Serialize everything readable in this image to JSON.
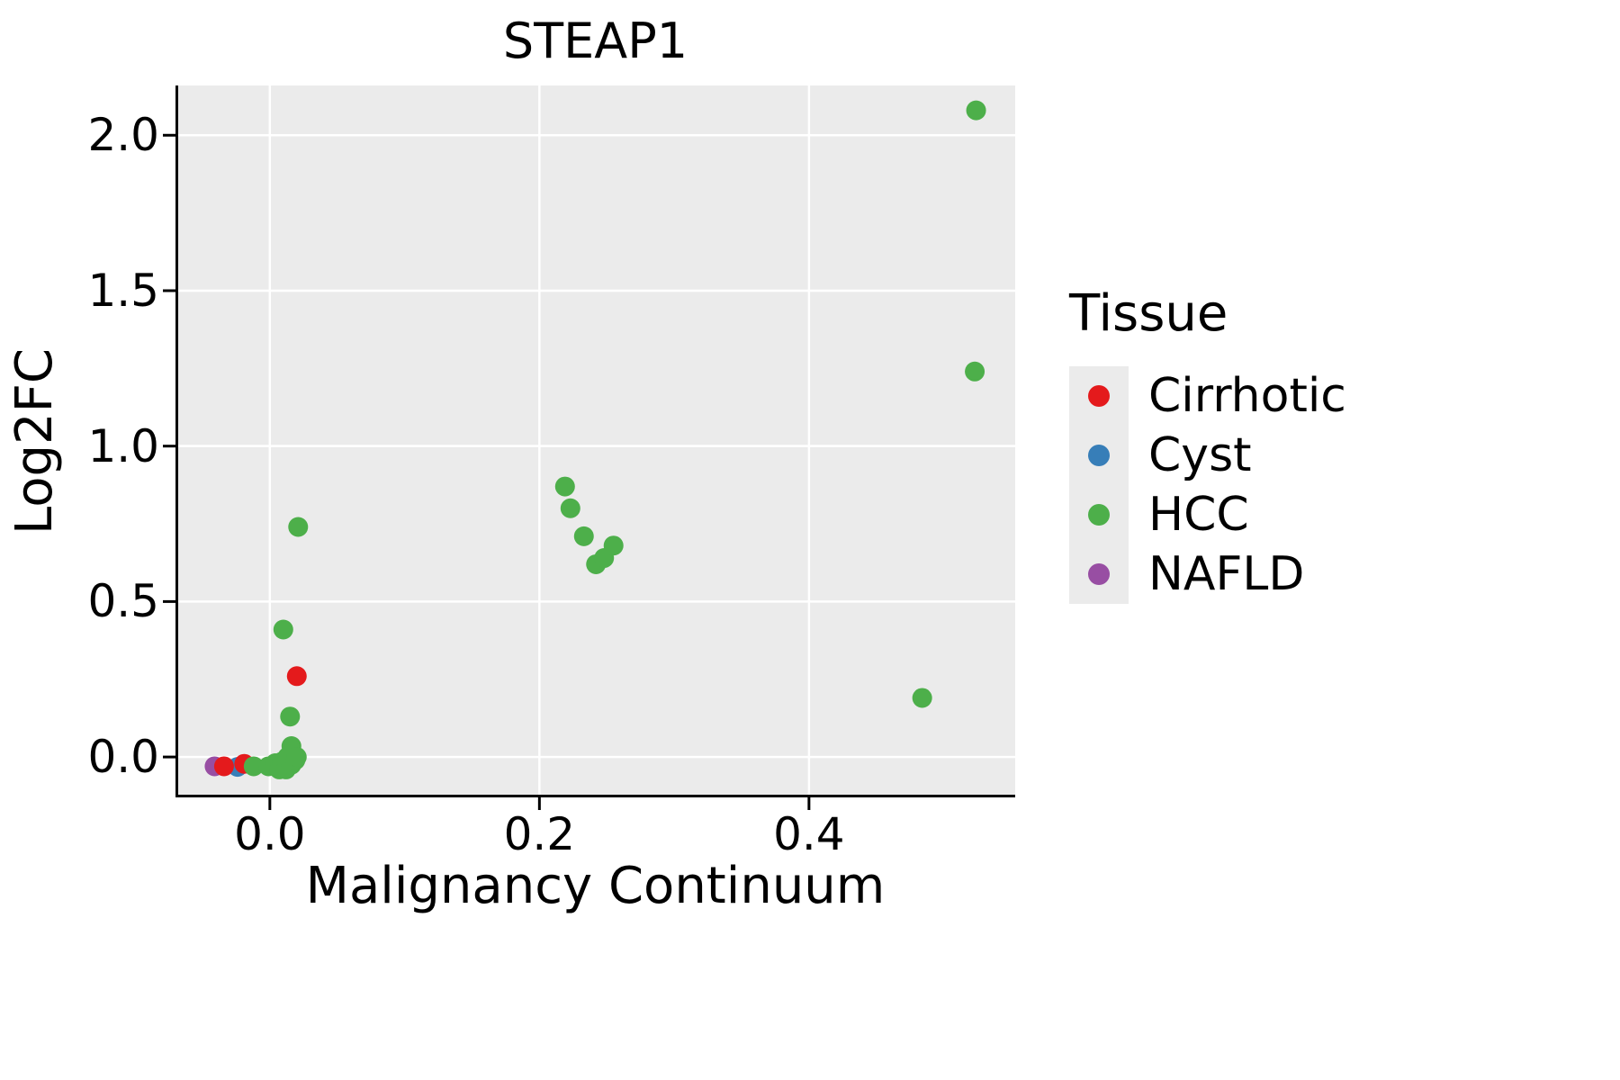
{
  "chart_data": {
    "type": "scatter",
    "title": "STEAP1",
    "xlabel": "Malignancy Continuum",
    "ylabel": "Log2FC",
    "legend_title": "Tissue",
    "legend_position": "right",
    "grid": "major",
    "xlim": [
      -0.07,
      0.553
    ],
    "ylim": [
      -0.13,
      2.16
    ],
    "xticks": [
      0.0,
      0.2,
      0.4
    ],
    "xtick_labels": [
      "0.0",
      "0.2",
      "0.4"
    ],
    "yticks": [
      0.0,
      0.5,
      1.0,
      1.5,
      2.0
    ],
    "ytick_labels": [
      "0.0",
      "0.5",
      "1.0",
      "1.5",
      "2.0"
    ],
    "marker_radius": 11,
    "colors": {
      "plot_bg": "#EBEBEB",
      "grid": "#FFFFFF",
      "axis": "#000000",
      "legend_key_bg": "#EBEBEB"
    },
    "draw_order": [
      "NAFLD",
      "Cyst",
      "Cirrhotic",
      "HCC"
    ],
    "series": [
      {
        "name": "Cirrhotic",
        "color": "#E41A1C",
        "points": [
          [
            -0.034,
            -0.03
          ],
          [
            -0.019,
            -0.022
          ],
          [
            0.02,
            0.26
          ]
        ]
      },
      {
        "name": "Cyst",
        "color": "#377EB8",
        "points": [
          [
            -0.024,
            -0.032
          ]
        ]
      },
      {
        "name": "HCC",
        "color": "#4DAF4A",
        "points": [
          [
            -0.012,
            -0.03
          ],
          [
            -0.001,
            -0.03
          ],
          [
            0.004,
            -0.02
          ],
          [
            0.007,
            -0.04
          ],
          [
            0.009,
            -0.015
          ],
          [
            0.012,
            -0.04
          ],
          [
            0.013,
            0.0
          ],
          [
            0.016,
            -0.025
          ],
          [
            0.019,
            -0.01
          ],
          [
            0.016,
            0.035
          ],
          [
            0.02,
            0.0
          ],
          [
            0.015,
            0.13
          ],
          [
            0.01,
            0.41
          ],
          [
            0.021,
            0.74
          ],
          [
            0.219,
            0.87
          ],
          [
            0.223,
            0.8
          ],
          [
            0.233,
            0.71
          ],
          [
            0.242,
            0.62
          ],
          [
            0.248,
            0.64
          ],
          [
            0.255,
            0.68
          ],
          [
            0.484,
            0.19
          ],
          [
            0.523,
            1.24
          ],
          [
            0.524,
            2.08
          ]
        ]
      },
      {
        "name": "NAFLD",
        "color": "#984EA3",
        "points": [
          [
            -0.041,
            -0.03
          ]
        ]
      }
    ]
  }
}
